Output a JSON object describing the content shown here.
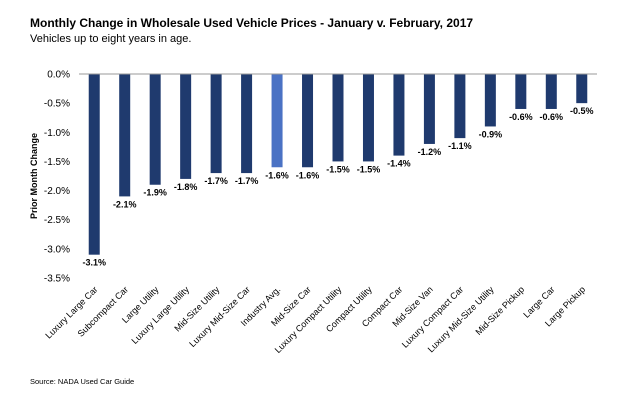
{
  "header": {
    "title": "Monthly Change in Wholesale Used Vehicle Prices - January v. February, 2017",
    "subtitle": "Vehicles up to eight years in age."
  },
  "footer": {
    "source": "Source:  NADA Used Car Guide"
  },
  "chart_data": {
    "type": "bar",
    "title": "Monthly Change in Wholesale Used Vehicle Prices - January v. February, 2017",
    "subtitle": "Vehicles up to eight years in age.",
    "ylabel": "Prior Month Change",
    "xlabel": "",
    "ylim": [
      -3.5,
      0
    ],
    "yticks": [
      "0.0%",
      "-0.5%",
      "-1.0%",
      "-1.5%",
      "-2.0%",
      "-2.5%",
      "-3.0%",
      "-3.5%"
    ],
    "categories": [
      "Luxury Large Car",
      "Subcompact Car",
      "Large Utility",
      "Luxury Large Utility",
      "Mid-Size Utility",
      "Luxury Mid-Size Car",
      "Industry Avg.",
      "Mid-Size Car",
      "Luxury Compact Utility",
      "Compact Utility",
      "Compact Car",
      "Mid-Size Van",
      "Luxury Compact Car",
      "Luxury Mid-Size Utility",
      "Mid-Size Pickup",
      "Large Car",
      "Large Pickup"
    ],
    "values": [
      -3.1,
      -2.1,
      -1.9,
      -1.8,
      -1.7,
      -1.7,
      -1.6,
      -1.6,
      -1.5,
      -1.5,
      -1.4,
      -1.2,
      -1.1,
      -0.9,
      -0.6,
      -0.6,
      -0.5
    ],
    "data_labels": [
      "-3.1%",
      "-2.1%",
      "-1.9%",
      "-1.8%",
      "-1.7%",
      "-1.7%",
      "-1.6%",
      "-1.6%",
      "-1.5%",
      "-1.5%",
      "-1.4%",
      "-1.2%",
      "-1.1%",
      "-0.9%",
      "-0.6%",
      "-0.6%",
      "-0.5%"
    ],
    "highlight_category": "Industry Avg.",
    "colors": {
      "bar": "#1f3a6e",
      "highlight": "#4a72c4",
      "axis": "#9a9a9a"
    },
    "grid": false,
    "legend": "none"
  }
}
